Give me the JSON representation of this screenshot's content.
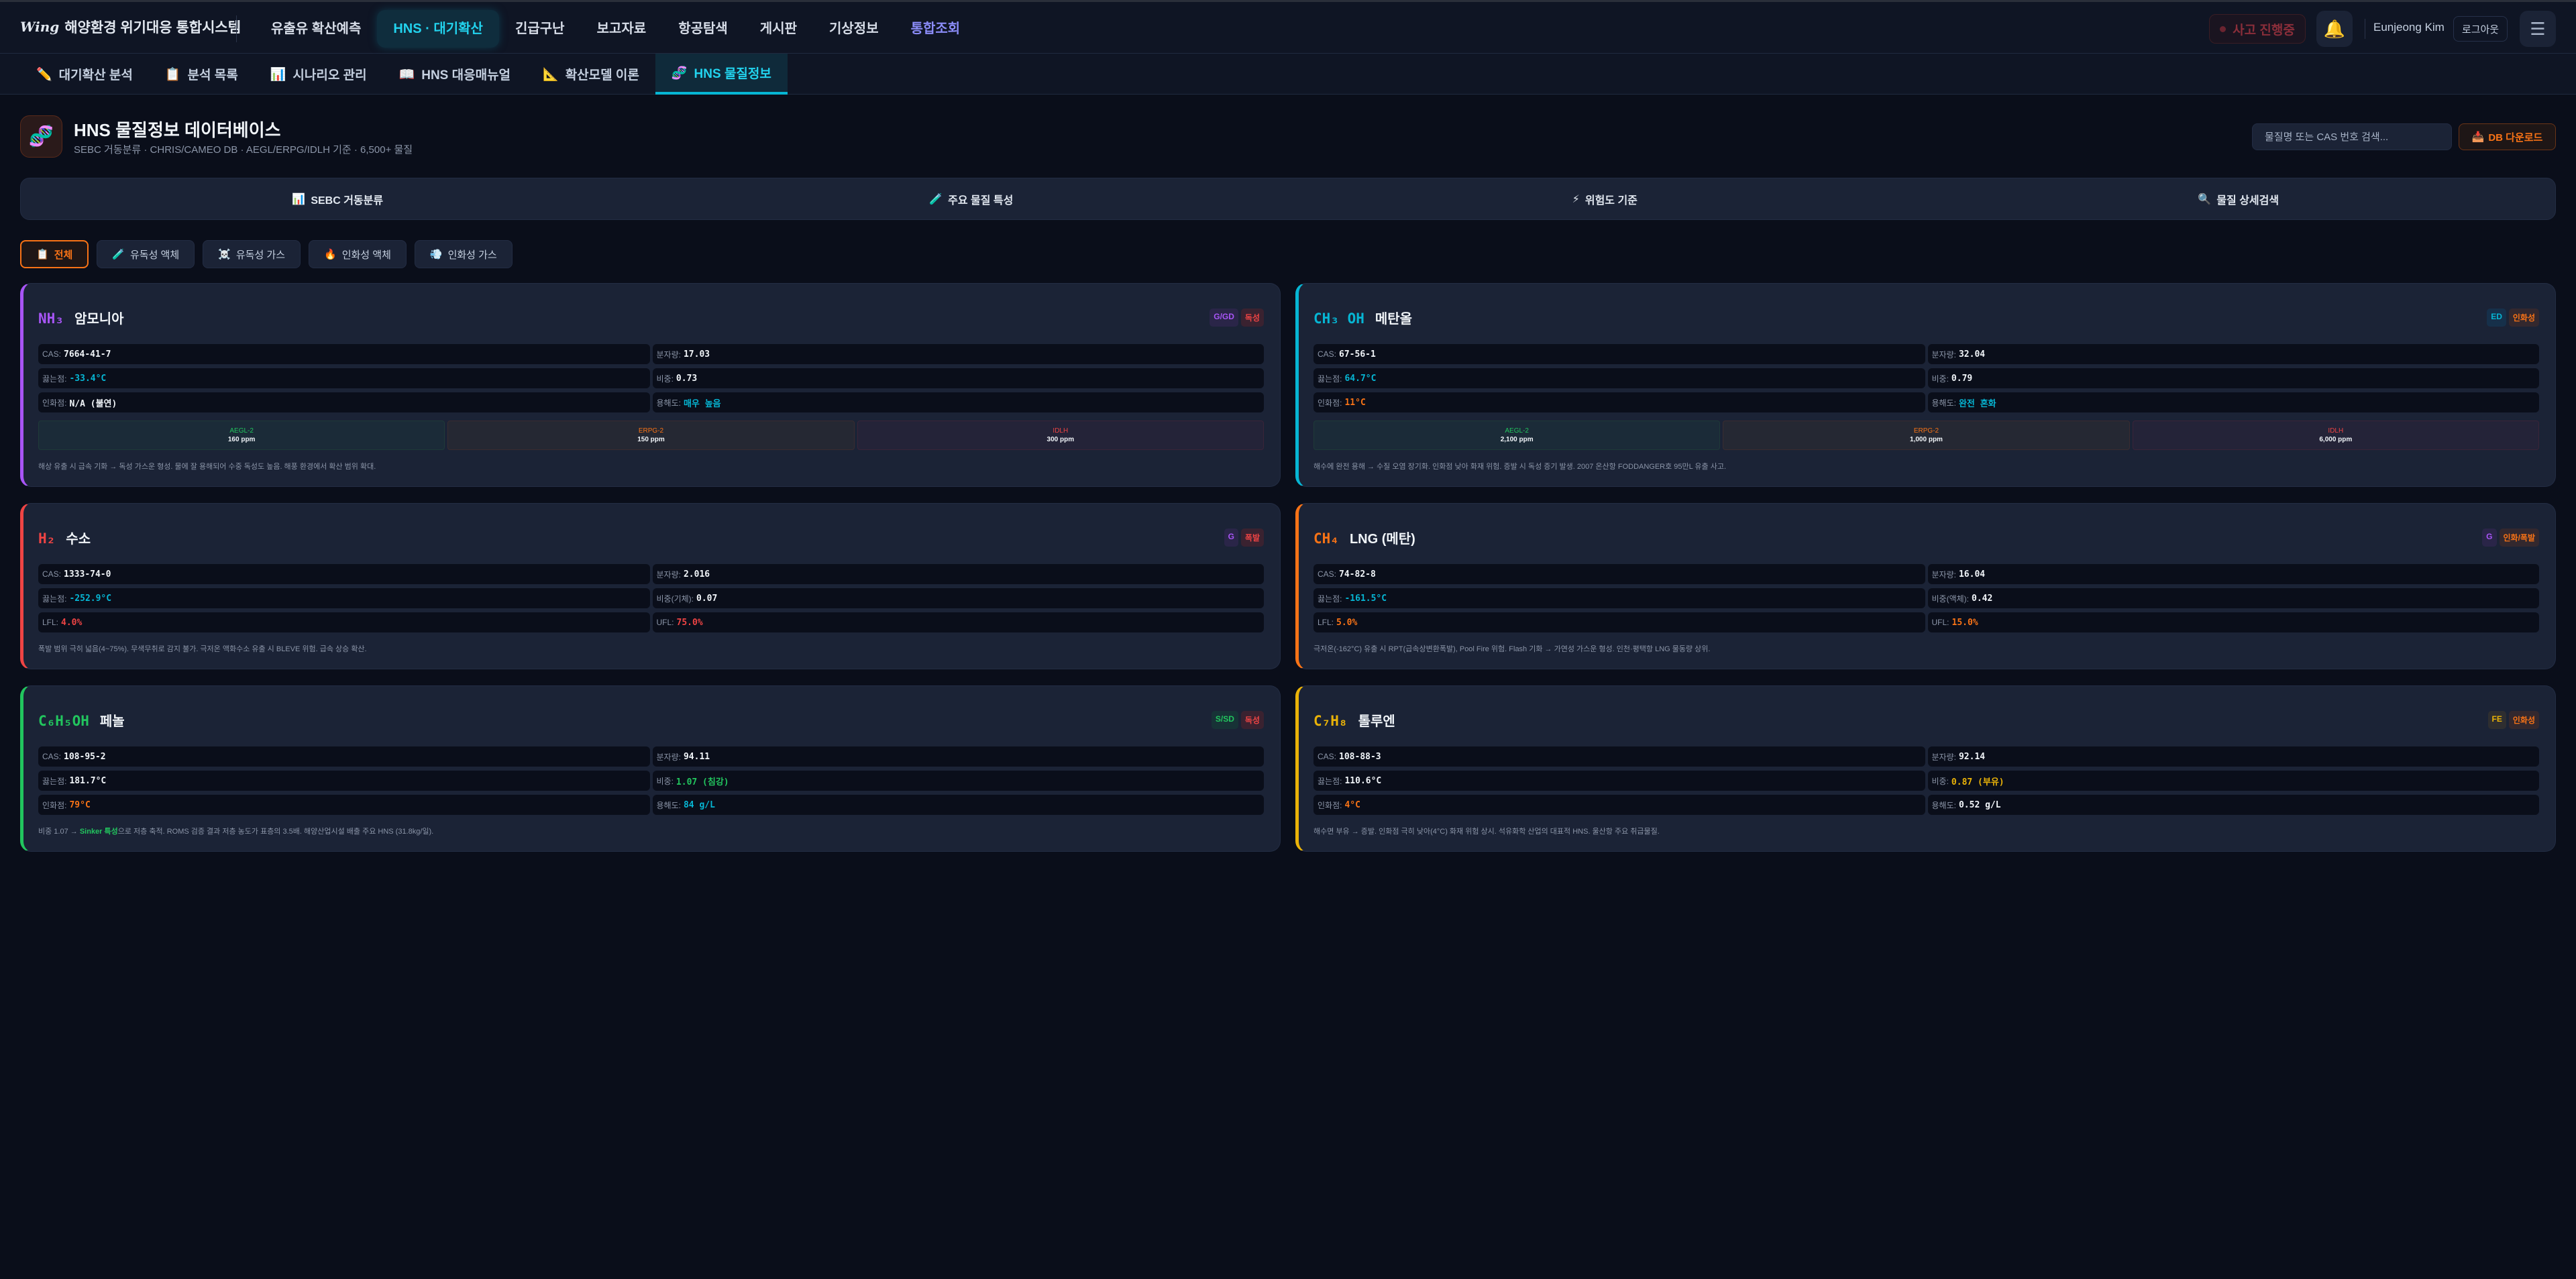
{
  "app": {
    "logo_mark": "Wing",
    "title": "해양환경 위기대응 통합시스템"
  },
  "nav": {
    "items": [
      {
        "label": "유출유 확산예측",
        "state": "normal"
      },
      {
        "label": "HNS · 대기확산",
        "state": "active"
      },
      {
        "label": "긴급구난",
        "state": "normal"
      },
      {
        "label": "보고자료",
        "state": "normal"
      },
      {
        "label": "항공탐색",
        "state": "normal"
      },
      {
        "label": "게시판",
        "state": "normal"
      },
      {
        "label": "기상정보",
        "state": "normal"
      },
      {
        "label": "통합조회",
        "state": "purple"
      }
    ]
  },
  "header_right": {
    "incident_label": "사고 진행중",
    "bell_icon": "bell-icon",
    "user_name": "Eunjeong Kim",
    "logout_label": "로그아웃",
    "menu_icon": "hamburger-icon"
  },
  "subnav": {
    "items": [
      {
        "icon": "✏️",
        "label": "대기확산 분석"
      },
      {
        "icon": "📋",
        "label": "분석 목록"
      },
      {
        "icon": "📊",
        "label": "시나리오 관리"
      },
      {
        "icon": "📖",
        "label": "HNS 대응매뉴얼"
      },
      {
        "icon": "📐",
        "label": "확산모델 이론"
      },
      {
        "icon": "🧬",
        "label": "HNS 물질정보",
        "active": true
      }
    ]
  },
  "page": {
    "icon": "🧬",
    "title": "HNS 물질정보 데이터베이스",
    "subtitle": "SEBC 거동분류 · CHRIS/CAMEO DB · AEGL/ERPG/IDLH 기준 · 6,500+ 물질",
    "search_placeholder": "물질명 또는 CAS 번호 검색...",
    "download_icon": "📥",
    "download_label": "DB 다운로드"
  },
  "section_tabs": [
    {
      "icon": "📊",
      "label": "SEBC 거동분류"
    },
    {
      "icon": "🧪",
      "label": "주요 물질 특성"
    },
    {
      "icon": "⚡",
      "label": "위험도 기준"
    },
    {
      "icon": "🔍",
      "label": "물질 상세검색"
    }
  ],
  "filters": [
    {
      "icon": "📋",
      "label": "전체",
      "active": true
    },
    {
      "icon": "🧪",
      "label": "유독성 액체"
    },
    {
      "icon": "☠️",
      "label": "유독성 가스"
    },
    {
      "icon": "🔥",
      "label": "인화성 액체"
    },
    {
      "icon": "💨",
      "label": "인화성 가스"
    }
  ],
  "colors": {
    "accent": "#22d3ee",
    "white": "#f1f5f9",
    "cyan": "#06b6d4",
    "orange": "#f97316",
    "red": "#ef4444",
    "green": "#22c55e",
    "yellow": "#eab308",
    "purple": "#a855f7"
  },
  "substances": [
    {
      "formula": "NH₃",
      "name": "암모니아",
      "color": "#a855f7",
      "badges": [
        {
          "text": "G/GD",
          "color": "#a855f7",
          "bg": "#2a2548"
        },
        {
          "text": "독성",
          "color": "#ef4444",
          "bg": "#3a2230"
        }
      ],
      "props": [
        {
          "label": "CAS:",
          "value": "7664-41-7",
          "color": "#f1f5f9"
        },
        {
          "label": "분자량:",
          "value": "17.03",
          "color": "#f1f5f9"
        },
        {
          "label": "끓는점:",
          "value": "-33.4°C",
          "color": "#06b6d4"
        },
        {
          "label": "비중:",
          "value": "0.73",
          "color": "#f1f5f9"
        },
        {
          "label": "인화점:",
          "value": "N/A (불연)",
          "color": "#f1f5f9"
        },
        {
          "label": "용해도:",
          "value": "매우 높음",
          "color": "#06b6d4"
        }
      ],
      "thresholds": [
        {
          "label": "AEGL-2",
          "value": "160 ppm",
          "color": "#22c55e",
          "bg": "#1b2b38",
          "border": "#1f3a38"
        },
        {
          "label": "ERPG-2",
          "value": "150 ppm",
          "color": "#f97316",
          "bg": "#252833",
          "border": "#3a2c30"
        },
        {
          "label": "IDLH",
          "value": "300 ppm",
          "color": "#ef4444",
          "bg": "#242338",
          "border": "#3a2438"
        }
      ],
      "description": [
        {
          "text": "해상 유출 시 급속 기화 → 독성 가스운 형성. 물에 잘 용해되어 수중 독성도 높음. 해풍 환경에서 확산 범위 확대."
        }
      ]
    },
    {
      "formula": "CH₃ OH",
      "name": "메탄올",
      "color": "#06b6d4",
      "badges": [
        {
          "text": "ED",
          "color": "#06b6d4",
          "bg": "#16304a"
        },
        {
          "text": "인화성",
          "color": "#f97316",
          "bg": "#33282e"
        }
      ],
      "props": [
        {
          "label": "CAS:",
          "value": "67-56-1",
          "color": "#f1f5f9"
        },
        {
          "label": "분자량:",
          "value": "32.04",
          "color": "#f1f5f9"
        },
        {
          "label": "끓는점:",
          "value": "64.7°C",
          "color": "#06b6d4"
        },
        {
          "label": "비중:",
          "value": "0.79",
          "color": "#f1f5f9"
        },
        {
          "label": "인화점:",
          "value": "11°C",
          "color": "#f97316"
        },
        {
          "label": "용해도:",
          "value": "완전 혼화",
          "color": "#06b6d4"
        }
      ],
      "thresholds": [
        {
          "label": "AEGL-2",
          "value": "2,100 ppm",
          "color": "#22c55e",
          "bg": "#1b2b38",
          "border": "#1f3a38"
        },
        {
          "label": "ERPG-2",
          "value": "1,000 ppm",
          "color": "#f97316",
          "bg": "#252833",
          "border": "#3a2c30"
        },
        {
          "label": "IDLH",
          "value": "6,000 ppm",
          "color": "#ef4444",
          "bg": "#242338",
          "border": "#3a2438"
        }
      ],
      "description": [
        {
          "text": "해수에 완전 용해 → 수질 오염 장기화. 인화점 낮아 화재 위험. 증발 시 독성 증기 발생. 2007 온산항 FODDANGER호 95만L 유출 사고."
        }
      ]
    },
    {
      "formula": "H₂",
      "name": "수소",
      "color": "#ef4444",
      "badges": [
        {
          "text": "G",
          "color": "#a855f7",
          "bg": "#2a2548"
        },
        {
          "text": "폭발",
          "color": "#ef4444",
          "bg": "#3a2230"
        }
      ],
      "props": [
        {
          "label": "CAS:",
          "value": "1333-74-0",
          "color": "#f1f5f9"
        },
        {
          "label": "분자량:",
          "value": "2.016",
          "color": "#f1f5f9"
        },
        {
          "label": "끓는점:",
          "value": "-252.9°C",
          "color": "#06b6d4"
        },
        {
          "label": "비중(기체):",
          "value": "0.07",
          "color": "#f1f5f9"
        },
        {
          "label": "LFL:",
          "value": "4.0%",
          "color": "#ef4444"
        },
        {
          "label": "UFL:",
          "value": "75.0%",
          "color": "#ef4444"
        }
      ],
      "thresholds": [],
      "description": [
        {
          "text": "폭발 범위 극히 넓음(4~75%). 무색무취로 감지 불가. 극저온 액화수소 유출 시 BLEVE 위험. 급속 상승 확산."
        }
      ]
    },
    {
      "formula": "CH₄",
      "name": "LNG (메탄)",
      "color": "#f97316",
      "badges": [
        {
          "text": "G",
          "color": "#a855f7",
          "bg": "#2a2548"
        },
        {
          "text": "인화/폭발",
          "color": "#f97316",
          "bg": "#33282e"
        }
      ],
      "props": [
        {
          "label": "CAS:",
          "value": "74-82-8",
          "color": "#f1f5f9"
        },
        {
          "label": "분자량:",
          "value": "16.04",
          "color": "#f1f5f9"
        },
        {
          "label": "끓는점:",
          "value": "-161.5°C",
          "color": "#06b6d4"
        },
        {
          "label": "비중(액체):",
          "value": "0.42",
          "color": "#f1f5f9"
        },
        {
          "label": "LFL:",
          "value": "5.0%",
          "color": "#f97316"
        },
        {
          "label": "UFL:",
          "value": "15.0%",
          "color": "#f97316"
        }
      ],
      "thresholds": [],
      "description": [
        {
          "text": "극저온(-162°C) 유출 시 RPT(급속상변환폭발), Pool Fire 위험. Flash 기화 → 가연성 가스운 형성. 인천·평택항 LNG 물동량 상위."
        }
      ]
    },
    {
      "formula": "C₆H₅OH",
      "name": "페놀",
      "color": "#22c55e",
      "badges": [
        {
          "text": "S/SD",
          "color": "#22c55e",
          "bg": "#173236"
        },
        {
          "text": "독성",
          "color": "#ef4444",
          "bg": "#3a2230"
        }
      ],
      "props": [
        {
          "label": "CAS:",
          "value": "108-95-2",
          "color": "#f1f5f9"
        },
        {
          "label": "분자량:",
          "value": "94.11",
          "color": "#f1f5f9"
        },
        {
          "label": "끓는점:",
          "value": "181.7°C",
          "color": "#f1f5f9"
        },
        {
          "label": "비중:",
          "value": "1.07 (침강)",
          "color": "#22c55e"
        },
        {
          "label": "인화점:",
          "value": "79°C",
          "color": "#f97316"
        },
        {
          "label": "용해도:",
          "value": "84 g/L",
          "color": "#06b6d4"
        }
      ],
      "thresholds": [],
      "description": [
        {
          "text": "비중 1.07 → "
        },
        {
          "text": "Sinker 특성",
          "highlight": true
        },
        {
          "text": "으로 저층 축적. ROMS 검증 결과 저층 농도가 표층의 3.5배. 해양산업시설 배출 주요 HNS (31.8kg/일)."
        }
      ]
    },
    {
      "formula": "C₇H₈",
      "name": "톨루엔",
      "color": "#eab308",
      "badges": [
        {
          "text": "FE",
          "color": "#eab308",
          "bg": "#2e2e30"
        },
        {
          "text": "인화성",
          "color": "#f97316",
          "bg": "#33282e"
        }
      ],
      "props": [
        {
          "label": "CAS:",
          "value": "108-88-3",
          "color": "#f1f5f9"
        },
        {
          "label": "분자량:",
          "value": "92.14",
          "color": "#f1f5f9"
        },
        {
          "label": "끓는점:",
          "value": "110.6°C",
          "color": "#f1f5f9"
        },
        {
          "label": "비중:",
          "value": "0.87 (부유)",
          "color": "#eab308"
        },
        {
          "label": "인화점:",
          "value": "4°C",
          "color": "#f97316"
        },
        {
          "label": "용해도:",
          "value": "0.52 g/L",
          "color": "#f1f5f9"
        }
      ],
      "thresholds": [],
      "description": [
        {
          "text": "해수면 부유 → 증발. 인화점 극히 낮아(4°C) 화재 위험 상시. 석유화학 산업의 대표적 HNS. 울산항 주요 취급물질."
        }
      ]
    }
  ]
}
